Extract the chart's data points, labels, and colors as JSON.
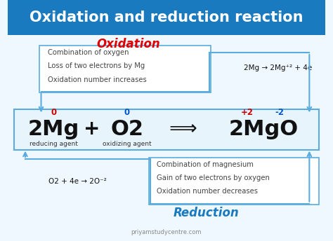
{
  "title": "Oxidation and reduction reaction",
  "title_color": "#ffffff",
  "title_bg": "#1a7abf",
  "oxidation_label": "Oxidation",
  "reduction_label": "Reduction",
  "label_color_red": "#e00000",
  "label_color_blue": "#1a7abf",
  "bg_color": "#f0f8ff",
  "box_bg": "#e8f4fc",
  "box_border": "#5aabde",
  "ox_num_2mg": "0",
  "ox_num_o2": "0",
  "ox_num_mg_mgo": "+2",
  "ox_num_o_mgo": "-2",
  "ox_num_2mg_color": "#cc0000",
  "ox_num_o2_color": "#0055cc",
  "ox_num_mg_color": "#cc0000",
  "ox_num_o_color": "#0055cc",
  "reducing_agent": "reducing agent",
  "oxidizing_agent": "oxidizing agent",
  "agent_color": "#333333",
  "ox_box_lines": [
    "Combination of oxygen",
    "Loss of two electrons by Mg",
    "Oxidation number increases"
  ],
  "red_box_lines": [
    "Combination of magnesium",
    "Gain of two electrons by oxygen",
    "Oxidation number decreases"
  ],
  "ox_half": "2Mg → 2Mg⁺² + 4e",
  "red_half": "O2 + 4e → 2O⁻²",
  "arrow_color": "#5aabde",
  "text_color": "#444444",
  "watermark": "priyamstudycentre.com",
  "eq_2mg": "2Mg",
  "eq_plus": "+",
  "eq_o2": "O2",
  "eq_arrow": "⟹",
  "eq_2mgo": "2MgO"
}
